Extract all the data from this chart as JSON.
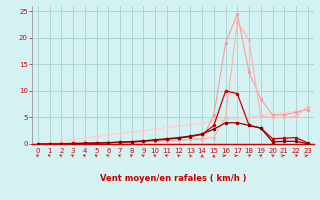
{
  "x": [
    0,
    1,
    2,
    3,
    4,
    5,
    6,
    7,
    8,
    9,
    10,
    11,
    12,
    13,
    14,
    15,
    16,
    17,
    18,
    19,
    20,
    21,
    22,
    23
  ],
  "line_rafales_y": [
    0.0,
    0.0,
    0.1,
    0.15,
    0.2,
    0.25,
    0.3,
    0.35,
    0.4,
    0.45,
    0.55,
    0.65,
    0.75,
    0.85,
    1.0,
    5.5,
    19.0,
    24.5,
    13.5,
    8.5,
    5.5,
    5.5,
    6.0,
    6.5
  ],
  "line_moyen_y": [
    0.0,
    0.0,
    0.05,
    0.1,
    0.15,
    0.2,
    0.25,
    0.3,
    0.35,
    0.45,
    0.55,
    0.65,
    0.75,
    0.85,
    0.95,
    1.2,
    5.0,
    23.0,
    19.5,
    5.2,
    5.0,
    5.0,
    5.2,
    7.0
  ],
  "line_dark1_y": [
    0.0,
    0.0,
    0.05,
    0.1,
    0.15,
    0.2,
    0.25,
    0.3,
    0.4,
    0.5,
    0.7,
    0.9,
    1.1,
    1.4,
    1.8,
    3.5,
    10.0,
    9.5,
    3.5,
    3.0,
    1.0,
    1.1,
    1.2,
    0.2
  ],
  "line_dark2_y": [
    0.0,
    0.0,
    0.0,
    0.05,
    0.1,
    0.15,
    0.25,
    0.35,
    0.45,
    0.6,
    0.8,
    1.0,
    1.2,
    1.5,
    1.9,
    2.8,
    4.0,
    4.0,
    3.5,
    3.0,
    0.4,
    0.5,
    0.5,
    0.05
  ],
  "line_diag_y": [
    0.0,
    0.28,
    0.57,
    0.85,
    1.13,
    1.41,
    1.7,
    1.98,
    2.26,
    2.54,
    2.83,
    3.11,
    3.39,
    3.67,
    3.96,
    4.24,
    4.52,
    4.8,
    5.09,
    5.37,
    5.65,
    5.93,
    6.22,
    6.5
  ],
  "color_rafales": "#FF9999",
  "color_moyen": "#FFB0B0",
  "color_dark1": "#CC0000",
  "color_dark2": "#880000",
  "color_diag": "#FFCCCC",
  "bg_color": "#D5F2F2",
  "grid_color": "#99CCCC",
  "xlabel": "Vent moyen/en rafales ( km/h )",
  "ylim": [
    0,
    26
  ],
  "xlim": [
    -0.5,
    23.5
  ],
  "yticks": [
    0,
    5,
    10,
    15,
    20,
    25
  ],
  "xticks": [
    0,
    1,
    2,
    3,
    4,
    5,
    6,
    7,
    8,
    9,
    10,
    11,
    12,
    13,
    14,
    15,
    16,
    17,
    18,
    19,
    20,
    21,
    22,
    23
  ],
  "arrows_angles_deg": [
    225,
    225,
    225,
    225,
    225,
    225,
    225,
    225,
    225,
    225,
    225,
    225,
    210,
    195,
    180,
    180,
    90,
    90,
    135,
    150,
    135,
    90,
    135,
    90
  ]
}
